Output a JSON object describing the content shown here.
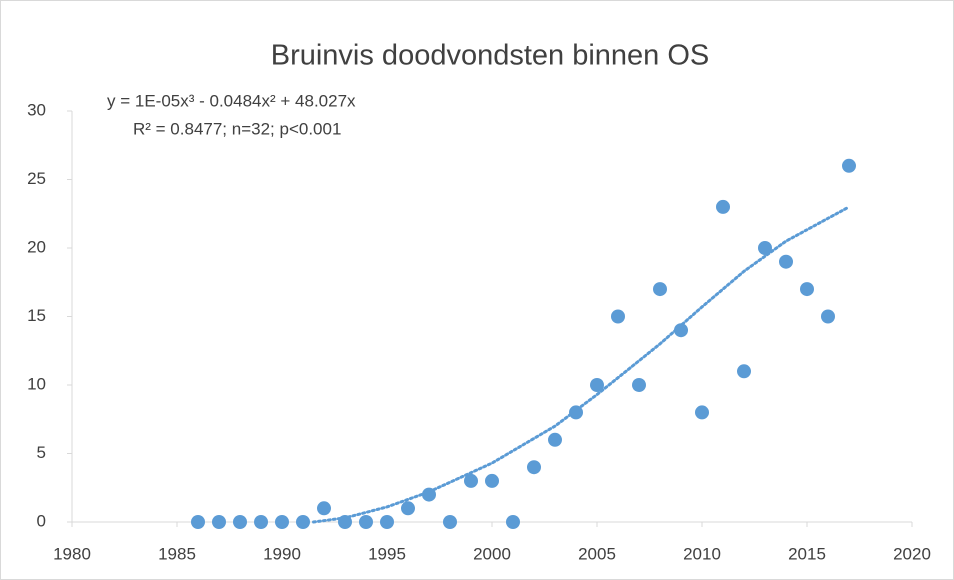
{
  "chart_data": {
    "type": "scatter",
    "title": "Bruinvis doodvondsten  binnen OS",
    "annotations": [
      "y = 1E-05x³ - 0.0484x² + 48.027x",
      "R² = 0.8477; n=32; p<0.001"
    ],
    "x": [
      1986,
      1987,
      1988,
      1989,
      1990,
      1991,
      1992,
      1993,
      1994,
      1995,
      1996,
      1997,
      1998,
      1999,
      2000,
      2001,
      2002,
      2003,
      2004,
      2005,
      2006,
      2007,
      2008,
      2009,
      2010,
      2011,
      2012,
      2013,
      2014,
      2015,
      2016,
      2017
    ],
    "values": [
      0,
      0,
      0,
      0,
      0,
      0,
      1,
      0,
      0,
      0,
      1,
      2,
      0,
      3,
      3,
      0,
      4,
      6,
      8,
      10,
      15,
      10,
      17,
      14,
      8,
      23,
      11,
      20,
      19,
      17,
      15,
      26
    ],
    "color": "#5b9bd5",
    "trendline": {
      "x": [
        1991.5,
        1993,
        1995,
        1997,
        2000,
        2003,
        2005,
        2008,
        2010,
        2012,
        2014,
        2017
      ],
      "values": [
        0,
        0.3,
        1.1,
        2.2,
        4.3,
        7.0,
        9.3,
        13.0,
        15.7,
        18.3,
        20.5,
        23
      ],
      "color": "#5b9bd5"
    },
    "xlim": [
      1980,
      2020
    ],
    "xticks": [
      1980,
      1985,
      1990,
      1995,
      2000,
      2005,
      2010,
      2015,
      2020
    ],
    "ylim": [
      0,
      30
    ],
    "yticks": [
      0,
      5,
      10,
      15,
      20,
      25,
      30
    ],
    "grid": false
  }
}
